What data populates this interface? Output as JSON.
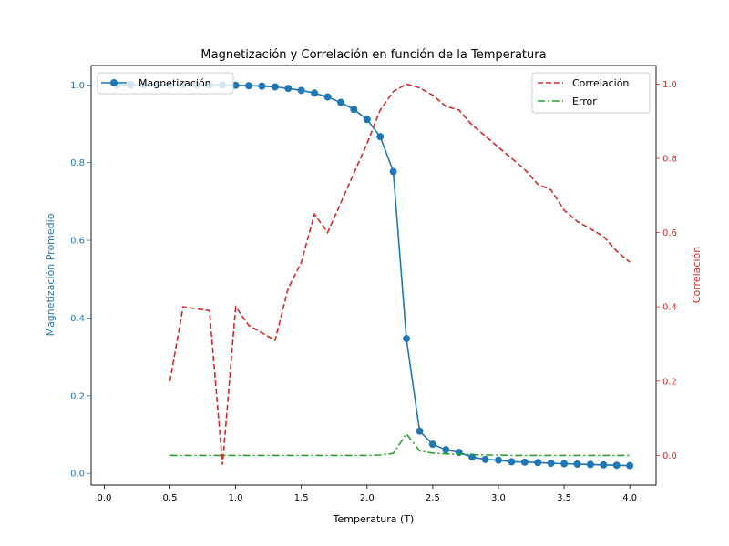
{
  "chart_data": {
    "type": "line",
    "title": "Magnetización y Correlación en función de la Temperatura",
    "xlabel": "Temperatura (T)",
    "ylabel_left": "Magnetización Promedio",
    "ylabel_right": "Correlación",
    "xlim": [
      -0.1,
      4.2
    ],
    "ylim_left": [
      -0.03,
      1.05
    ],
    "ylim_right": [
      -0.08,
      1.05
    ],
    "xticks": [
      "0.0",
      "0.5",
      "1.0",
      "1.5",
      "2.0",
      "2.5",
      "3.0",
      "3.5",
      "4.0"
    ],
    "yticks_left": [
      "0.0",
      "0.2",
      "0.4",
      "0.6",
      "0.8",
      "1.0"
    ],
    "yticks_right": [
      "0.0",
      "0.2",
      "0.4",
      "0.6",
      "0.8",
      "1.0"
    ],
    "grid": false,
    "colors": {
      "magnetization": "#1f77b4",
      "correlation": "#d62728",
      "error": "#2ca02c"
    },
    "series": [
      {
        "name": "Magnetización",
        "axis": "left",
        "style": "solid-markers",
        "x": [
          0.1,
          0.2,
          0.3,
          0.4,
          0.5,
          0.6,
          0.7,
          0.8,
          0.9,
          1.0,
          1.1,
          1.2,
          1.3,
          1.4,
          1.5,
          1.6,
          1.7,
          1.8,
          1.9,
          2.0,
          2.1,
          2.2,
          2.3,
          2.4,
          2.5,
          2.6,
          2.7,
          2.8,
          2.9,
          3.0,
          3.1,
          3.2,
          3.3,
          3.4,
          3.5,
          3.6,
          3.7,
          3.8,
          3.9,
          4.0
        ],
        "y": [
          1.0,
          1.0,
          1.0,
          1.0,
          1.0,
          1.0,
          1.0,
          1.0,
          1.0,
          0.999,
          0.998,
          0.997,
          0.995,
          0.991,
          0.986,
          0.979,
          0.969,
          0.955,
          0.937,
          0.911,
          0.867,
          0.777,
          0.347,
          0.109,
          0.075,
          0.061,
          0.054,
          0.042,
          0.036,
          0.034,
          0.03,
          0.029,
          0.028,
          0.026,
          0.025,
          0.024,
          0.023,
          0.022,
          0.021,
          0.02
        ]
      },
      {
        "name": "Correlación",
        "axis": "right",
        "style": "dashed",
        "x": [
          0.5,
          0.6,
          0.7,
          0.8,
          0.9,
          1.0,
          1.1,
          1.2,
          1.3,
          1.4,
          1.5,
          1.6,
          1.7,
          1.8,
          1.9,
          2.0,
          2.1,
          2.2,
          2.3,
          2.4,
          2.5,
          2.6,
          2.7,
          2.8,
          2.9,
          3.0,
          3.1,
          3.2,
          3.3,
          3.4,
          3.5,
          3.6,
          3.7,
          3.8,
          3.9,
          4.0
        ],
        "y": [
          0.2,
          0.4,
          0.395,
          0.39,
          -0.025,
          0.4,
          0.35,
          0.33,
          0.31,
          0.45,
          0.52,
          0.65,
          0.6,
          0.68,
          0.76,
          0.84,
          0.93,
          0.98,
          1.0,
          0.99,
          0.97,
          0.94,
          0.93,
          0.89,
          0.86,
          0.83,
          0.8,
          0.77,
          0.73,
          0.715,
          0.66,
          0.63,
          0.61,
          0.59,
          0.55,
          0.52
        ]
      },
      {
        "name": "Error",
        "axis": "right",
        "style": "dashdot",
        "x": [
          0.5,
          0.6,
          0.7,
          0.8,
          0.9,
          1.0,
          1.1,
          1.2,
          1.3,
          1.4,
          1.5,
          1.6,
          1.7,
          1.8,
          1.9,
          2.0,
          2.1,
          2.2,
          2.3,
          2.4,
          2.5,
          2.6,
          2.7,
          2.8,
          2.9,
          3.0,
          3.1,
          3.2,
          3.3,
          3.4,
          3.5,
          3.6,
          3.7,
          3.8,
          3.9,
          4.0
        ],
        "y": [
          0.0,
          0.0,
          0.0,
          0.0,
          0.0,
          0.0,
          0.0,
          0.0,
          0.0,
          0.0,
          0.0,
          0.0,
          0.0,
          0.0,
          0.0,
          0.0,
          0.001,
          0.005,
          0.058,
          0.012,
          0.006,
          0.004,
          0.003,
          0.002,
          0.001,
          0.001,
          0.0,
          0.0,
          0.0,
          0.0,
          0.0,
          0.0,
          0.0,
          0.0,
          0.0,
          0.0
        ]
      }
    ],
    "legend_left": {
      "placement": "upper-left",
      "entries": [
        "Magnetización"
      ]
    },
    "legend_right": {
      "placement": "upper-right",
      "entries": [
        "Correlación",
        "Error"
      ]
    }
  }
}
